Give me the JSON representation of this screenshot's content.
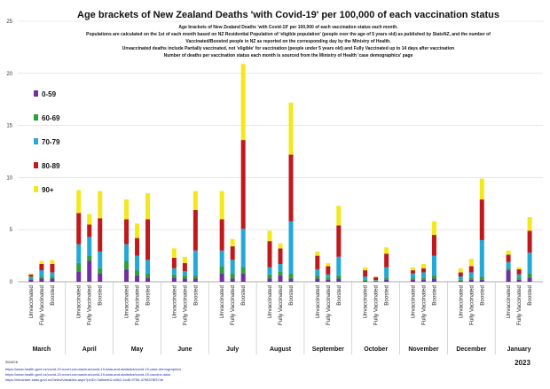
{
  "chart_data": {
    "type": "bar",
    "stacked": true,
    "title": "Age brackets of New Zealand Deaths 'with Covid-19' per 100,000 of each vaccination status",
    "subtitle_lines": [
      "Age brackets of New Zealand Deaths 'with Covid-19' per 100,000 of each vaccination status each month.",
      "Populations are calculated on the 1st of each month based on NZ Residential Population of 'eligible population' (people over the age of 5 years old) as published by StatsNZ, and the number of",
      "Vaccinated/Boosted people in NZ as reported on the corresponding day by the Ministry of Health.",
      "Unvaccinated deaths include Partially vaccinated, not 'eligible' for vaccination (people under 5 years old) and Fully Vaccinated up to 14 days after vaccination",
      "Number of deaths per vaccination status each month is sourced from the Ministry of Health 'case demographics' page"
    ],
    "ylim": [
      0,
      25
    ],
    "yticks": [
      0,
      5,
      10,
      15,
      20,
      25
    ],
    "grid": true,
    "legend_position": "left",
    "series": [
      {
        "name": "0-59",
        "color": "#7030A0"
      },
      {
        "name": "60-69",
        "color": "#2E9E3E"
      },
      {
        "name": "70-79",
        "color": "#22A9D8"
      },
      {
        "name": "80-89",
        "color": "#C0191C"
      },
      {
        "name": "90+",
        "color": "#F2E81C"
      }
    ],
    "statuses": [
      "Unvaccinated",
      "Fully Vaccinated",
      "Boosted"
    ],
    "months": [
      {
        "label": "March",
        "bars": [
          [
            0.2,
            0.1,
            0.2,
            0.2,
            0.1
          ],
          [
            0.3,
            0.2,
            0.6,
            0.6,
            0.3
          ],
          [
            0.3,
            0.2,
            0.4,
            0.8,
            0.4
          ]
        ]
      },
      {
        "label": "April",
        "bars": [
          [
            1.0,
            0.8,
            1.8,
            3.0,
            2.2
          ],
          [
            2.0,
            0.5,
            1.8,
            1.2,
            1.0
          ],
          [
            0.8,
            0.5,
            1.6,
            3.2,
            2.6
          ]
        ]
      },
      {
        "label": "May",
        "bars": [
          [
            1.2,
            0.8,
            1.6,
            2.4,
            1.9
          ],
          [
            0.6,
            0.5,
            1.4,
            1.7,
            1.4
          ],
          [
            0.4,
            0.4,
            1.3,
            3.9,
            2.5
          ]
        ]
      },
      {
        "label": "June",
        "bars": [
          [
            0.4,
            0.3,
            0.6,
            1.0,
            0.9
          ],
          [
            0.3,
            0.3,
            0.4,
            0.8,
            0.6
          ],
          [
            0.3,
            0.3,
            2.4,
            3.9,
            1.8
          ]
        ]
      },
      {
        "label": "July",
        "bars": [
          [
            0.8,
            0.7,
            1.5,
            3.0,
            2.7
          ],
          [
            0.3,
            0.5,
            1.3,
            1.3,
            0.7
          ],
          [
            0.8,
            0.6,
            3.7,
            8.5,
            7.3
          ]
        ]
      },
      {
        "label": "August",
        "bars": [
          [
            0.3,
            0.4,
            0.7,
            2.5,
            1.0
          ],
          [
            0.6,
            0.4,
            0.7,
            1.5,
            0.5
          ],
          [
            0.3,
            0.5,
            5.0,
            6.4,
            5.0
          ]
        ]
      },
      {
        "label": "September",
        "bars": [
          [
            0.3,
            0.3,
            0.6,
            1.3,
            0.4
          ],
          [
            0.2,
            0.2,
            0.3,
            0.8,
            0.3
          ],
          [
            0.3,
            0.3,
            1.8,
            3.0,
            1.9
          ]
        ]
      },
      {
        "label": "October",
        "bars": [
          [
            0.1,
            0.1,
            0.3,
            0.6,
            0.3
          ],
          [
            0.05,
            0.05,
            0.05,
            0.3,
            0.05
          ],
          [
            0.2,
            0.2,
            1.0,
            1.3,
            0.6
          ]
        ]
      },
      {
        "label": "November",
        "bars": [
          [
            0.2,
            0.2,
            0.4,
            0.3,
            0.3
          ],
          [
            0.2,
            0.2,
            0.5,
            0.4,
            0.4
          ],
          [
            0.3,
            0.3,
            1.9,
            2.0,
            1.3
          ]
        ]
      },
      {
        "label": "December",
        "bars": [
          [
            0.1,
            0.1,
            0.3,
            0.4,
            0.4
          ],
          [
            0.2,
            0.2,
            0.5,
            0.6,
            0.7
          ],
          [
            0.2,
            0.3,
            3.5,
            3.9,
            2.0
          ]
        ]
      },
      {
        "label": "January",
        "bars": [
          [
            1.1,
            0.2,
            0.6,
            0.7,
            0.4
          ],
          [
            0.2,
            0.2,
            0.3,
            0.5,
            0.2
          ],
          [
            0.4,
            0.4,
            2.0,
            2.1,
            1.3
          ]
        ]
      }
    ],
    "year_label": "2023"
  },
  "source": {
    "heading": "Source",
    "lines": [
      "https://www.health.govt.nz/covid-19-novel-coronavirus/covid-19-data-and-statistics/covid-19-case-demographics",
      "https://www.health.govt.nz/covid-19-novel-coronavirus/covid-19-data-and-statistics/covid-19-vaccine-data",
      "https://infoshare.stats.govt.nz/SelectVariables.aspx?pxID=7a8beeb2-e662-4cd5-9759-4798376f374e"
    ]
  }
}
